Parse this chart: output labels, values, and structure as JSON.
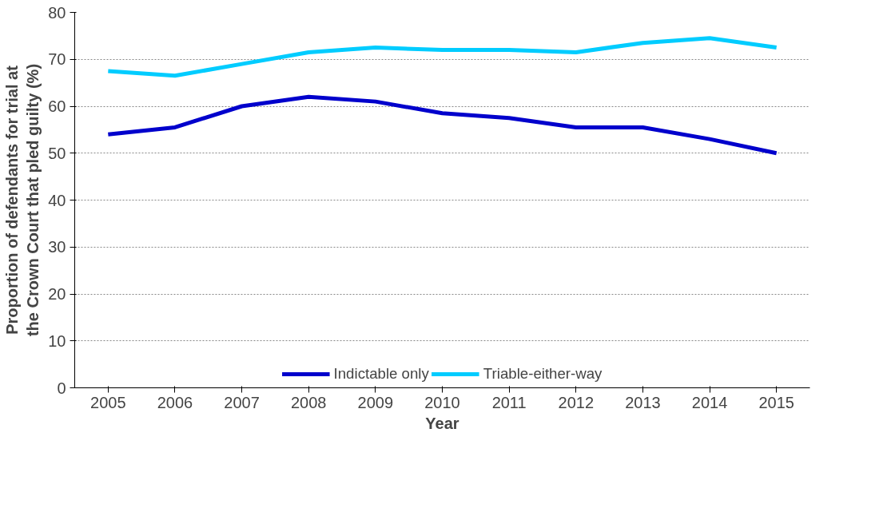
{
  "chart_data": {
    "type": "line",
    "xlabel": "Year",
    "ylabel": "Proportion of defendants for trial at the Crown Court that pled guilty (%)",
    "categories": [
      "2005",
      "2006",
      "2007",
      "2008",
      "2009",
      "2010",
      "2011",
      "2012",
      "2013",
      "2014",
      "2015"
    ],
    "series": [
      {
        "name": "Indictable only",
        "color": "#0000cc",
        "values": [
          54,
          55.5,
          60,
          62,
          61,
          58.5,
          57.5,
          55.5,
          55.5,
          53,
          50
        ]
      },
      {
        "name": "Triable-either-way",
        "color": "#00ccff",
        "values": [
          67.5,
          66.5,
          69,
          71.5,
          72.5,
          72,
          72,
          71.5,
          73.5,
          74.5,
          72.5
        ]
      }
    ],
    "ylim": [
      0,
      80
    ],
    "yticks": [
      0,
      10,
      20,
      30,
      40,
      50,
      60,
      70,
      80
    ],
    "grid": "y",
    "legend": "bottom",
    "marker": "none",
    "line_style": "solid"
  }
}
